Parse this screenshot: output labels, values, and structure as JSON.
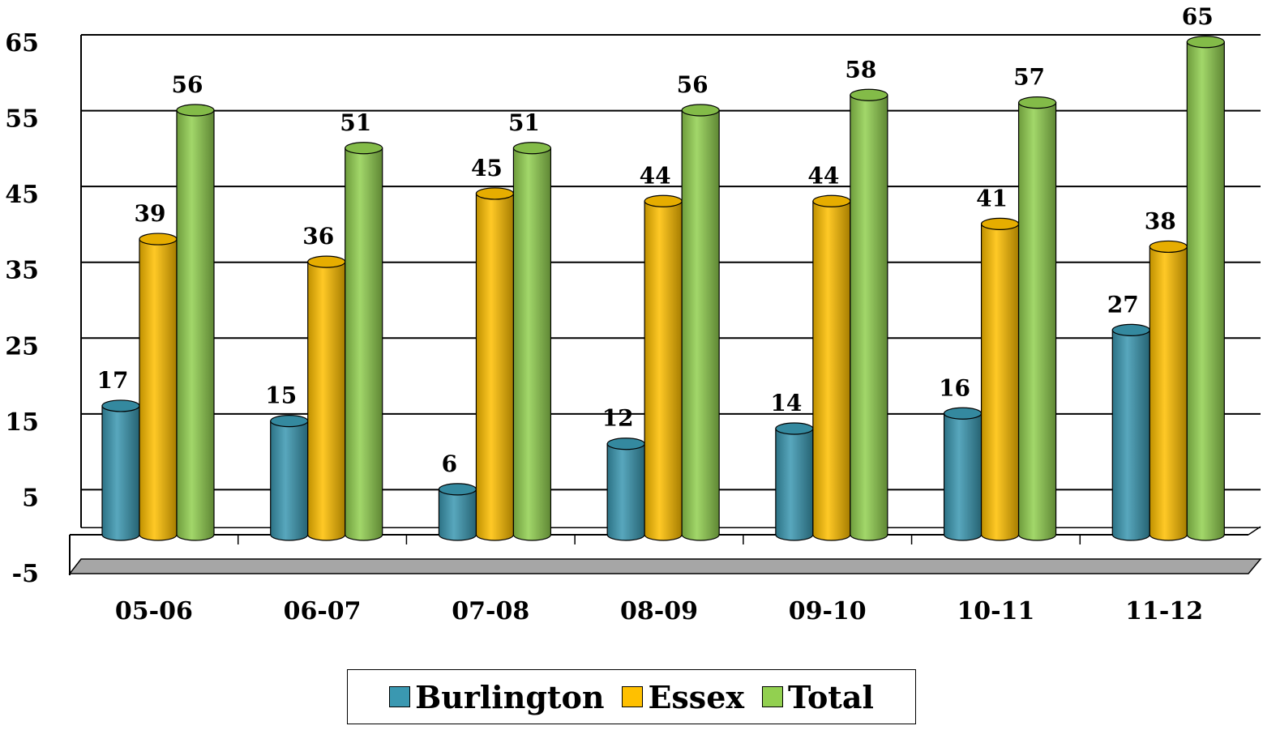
{
  "chart_data": {
    "type": "bar",
    "style": "3d-cylinder",
    "categories": [
      "05-06",
      "06-07",
      "07-08",
      "08-09",
      "09-10",
      "10-11",
      "11-12"
    ],
    "series": [
      {
        "name": "Burlington",
        "color": "#3a98b1",
        "values": [
          17,
          15,
          6,
          12,
          14,
          16,
          27
        ]
      },
      {
        "name": "Essex",
        "color": "#ffc000",
        "values": [
          39,
          36,
          45,
          44,
          44,
          41,
          38
        ]
      },
      {
        "name": "Total",
        "color": "#92d050",
        "values": [
          56,
          51,
          51,
          56,
          58,
          57,
          65
        ]
      }
    ],
    "y_ticks": [
      "65",
      "55",
      "45",
      "35",
      "25",
      "15",
      "5",
      "-5"
    ],
    "ylim": [
      -5,
      65
    ],
    "grid": true,
    "legend_position": "bottom",
    "floor_color": "#a6a6a6"
  }
}
